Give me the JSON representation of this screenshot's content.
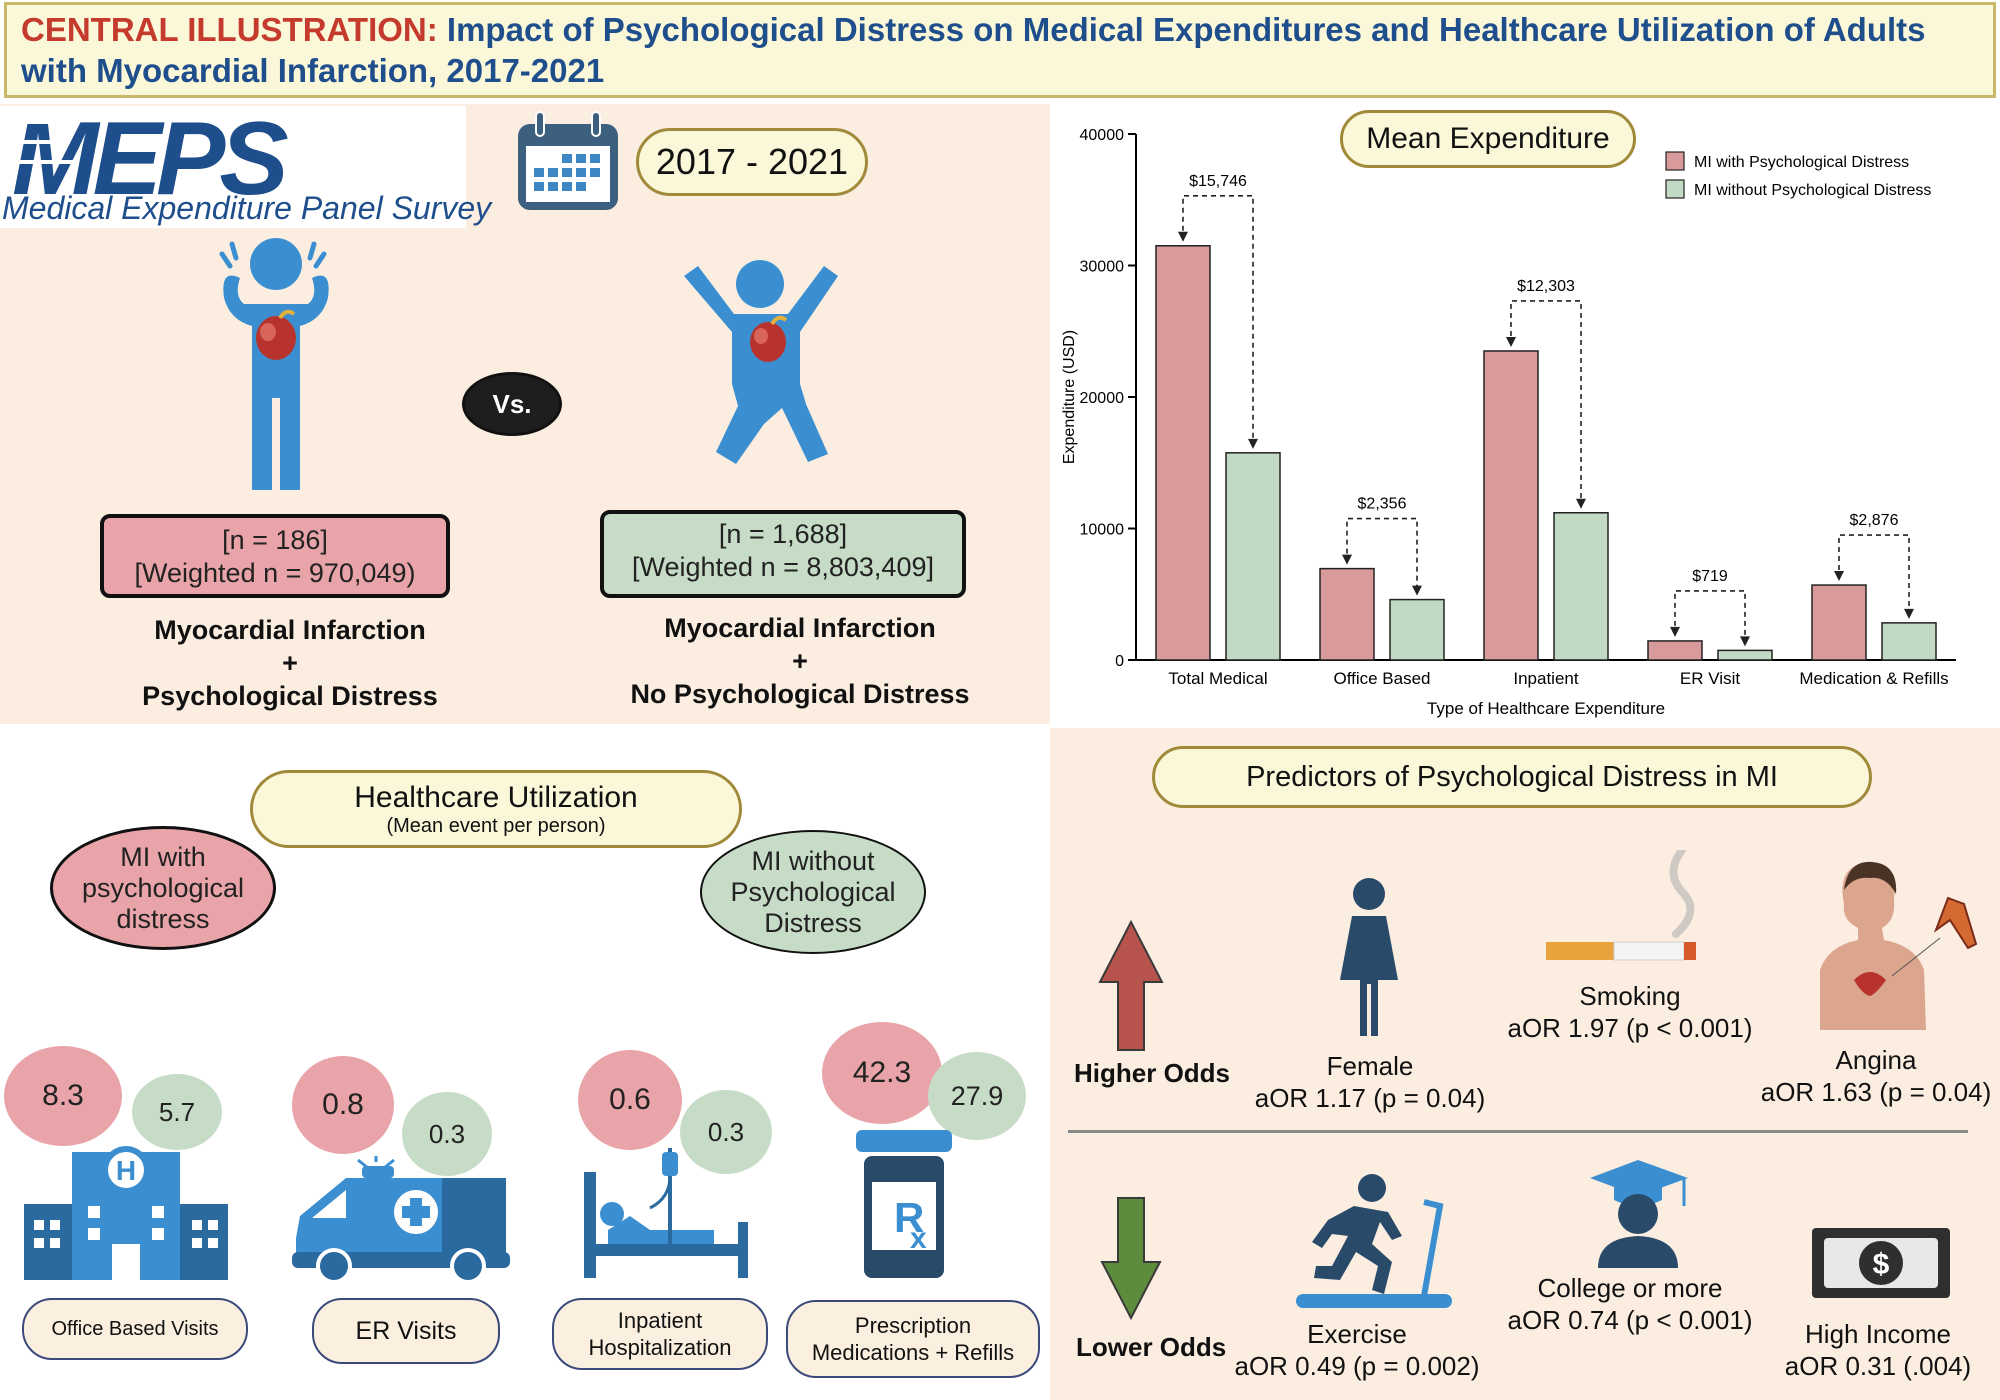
{
  "title": {
    "prefix": "CENTRAL ILLUSTRATION:",
    "line1_rest": " Impact of Psychological Distress on Medical Expenditures and Healthcare Utilization of Adults",
    "line2": "with Myocardial Infarction, 2017-2021"
  },
  "meps": {
    "logo": "MEPS",
    "subtitle": "Medical Expenditure Panel Survey"
  },
  "period": "2017 - 2021",
  "vs_label": "Vs.",
  "group_distress": {
    "n": "[n = 186]",
    "weighted": "[Weighted n = 970,049)",
    "line1": "Myocardial Infarction",
    "plus": "+",
    "line2": "Psychological Distress"
  },
  "group_no_distress": {
    "n": "[n = 1,688]",
    "weighted": "[Weighted n = 8,803,409]",
    "line1": "Myocardial Infarction",
    "plus": "+",
    "line2": "No Psychological Distress"
  },
  "utilization": {
    "title": "Healthcare Utilization",
    "subtitle": "(Mean event per person)",
    "legend_with": "MI with psychological distress",
    "legend_without": "MI without Psychological Distress",
    "items": [
      {
        "label": "Office Based Visits",
        "with": "8.3",
        "without": "5.7",
        "icon": "hospital-icon"
      },
      {
        "label": "ER Visits",
        "with": "0.8",
        "without": "0.3",
        "icon": "ambulance-icon"
      },
      {
        "label": "Inpatient Hospitalization",
        "with": "0.6",
        "without": "0.3",
        "icon": "hospital-bed-icon"
      },
      {
        "label": "Prescription Medications + Refills",
        "with": "42.3",
        "without": "27.9",
        "icon": "prescription-bottle-icon"
      }
    ]
  },
  "chart_data": {
    "type": "bar",
    "title": "Mean Expenditure",
    "xlabel": "Type of Healthcare Expenditure",
    "ylabel": "Expenditure (USD)",
    "ylim": [
      0,
      40000
    ],
    "yticks": [
      "0",
      "10000",
      "20000",
      "30000",
      "40000"
    ],
    "categories": [
      "Total Medical",
      "Office Based",
      "Inpatient",
      "ER Visit",
      "Medication & Refills"
    ],
    "series": [
      {
        "name": "MI with Psychological Distress",
        "color": "#d99a9c",
        "values": [
          31500,
          6950,
          23500,
          1450,
          5700
        ]
      },
      {
        "name": "MI without Psychological Distress",
        "color": "#c2dac4",
        "values": [
          15754,
          4594,
          11197,
          731,
          2824
        ]
      }
    ],
    "annotations": [
      "$15,746",
      "$2,356",
      "$12,303",
      "$719",
      "$2,876"
    ],
    "legend_position": "top-right"
  },
  "predictors": {
    "title": "Predictors of Psychological Distress in MI",
    "higher_label": "Higher Odds",
    "lower_label": "Lower Odds",
    "higher": [
      {
        "name": "Female",
        "stat": "aOR 1.17 (p = 0.04)"
      },
      {
        "name": "Smoking",
        "stat": "aOR 1.97 (p < 0.001)"
      },
      {
        "name": "Angina",
        "stat": "aOR 1.63 (p = 0.04)"
      }
    ],
    "lower": [
      {
        "name": "Exercise",
        "stat": "aOR 0.49 (p = 0.002)"
      },
      {
        "name": "College or more",
        "stat": "aOR 0.74 (p < 0.001)"
      },
      {
        "name": "High Income",
        "stat": "aOR 0.31 (.004)"
      }
    ]
  }
}
